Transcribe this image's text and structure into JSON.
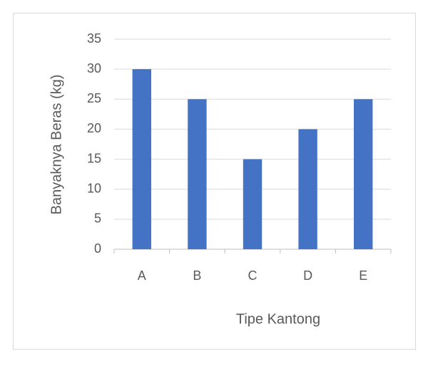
{
  "chart_data": {
    "type": "bar",
    "x_label": "Tipe Kantong",
    "y_label": "Banyaknya Beras (kg)",
    "categories": [
      "A",
      "B",
      "C",
      "D",
      "E"
    ],
    "values": [
      30,
      25,
      15,
      20,
      25
    ],
    "color": "#4472c4",
    "ylim": [
      0,
      35
    ],
    "yticks": [
      0,
      5,
      10,
      15,
      20,
      25,
      30,
      35
    ],
    "grid": true
  }
}
